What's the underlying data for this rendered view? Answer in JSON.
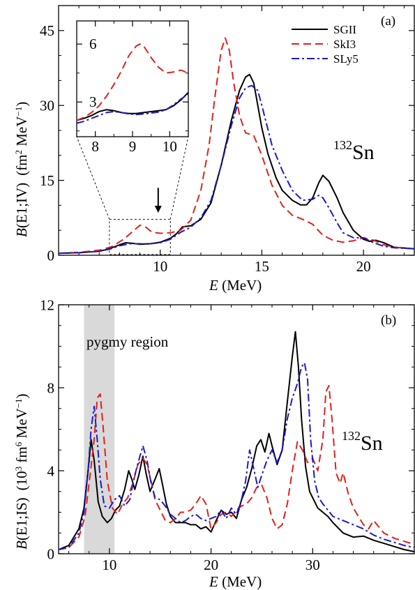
{
  "chart_data": [
    {
      "type": "line",
      "panel_label": "(a)",
      "nucleus_mass": "132",
      "nucleus_symbol": "Sn",
      "xlabel_italic": "E",
      "xlabel_unit": " (MeV)",
      "ylabel_italic_B": "B",
      "ylabel_E1": "(E1;IV)",
      "ylabel_unit_prefix": "(fm",
      "ylabel_unit_exp1": "2",
      "ylabel_unit_mid": " MeV",
      "ylabel_unit_exp2": "−1",
      "ylabel_unit_suffix": ")",
      "xlim": [
        5,
        22.5
      ],
      "ylim": [
        0,
        50
      ],
      "xticks": [
        10,
        15,
        20
      ],
      "yticks": [
        0,
        15,
        30,
        45
      ],
      "legend": {
        "placement": "top-right",
        "entries": [
          "SGII",
          "SkI3",
          "SLy5"
        ]
      },
      "series": [
        {
          "name": "SGII",
          "color": "#000000",
          "dash": "solid",
          "x": [
            5,
            6,
            7,
            7.5,
            8,
            8.3,
            8.6,
            9,
            9.5,
            10,
            10.5,
            10.8,
            11.1,
            11.5,
            12,
            12.5,
            13,
            13.5,
            13.9,
            14.2,
            14.4,
            14.6,
            14.8,
            15,
            15.3,
            15.7,
            16,
            16.5,
            16.9,
            17.2,
            17.5,
            17.8,
            18,
            18.3,
            18.7,
            19,
            19.5,
            20,
            20.3,
            20.6,
            21,
            21.5,
            22.5
          ],
          "y": [
            0.4,
            0.5,
            0.8,
            1.3,
            2.1,
            2.5,
            2.4,
            2.2,
            2.3,
            2.6,
            3.4,
            4.3,
            5.7,
            5.9,
            7.2,
            10.5,
            18,
            27,
            33,
            35.7,
            36.2,
            34.5,
            30,
            25.5,
            20.3,
            15.5,
            13,
            11,
            10.1,
            10.1,
            11.5,
            14.5,
            16,
            14.8,
            11.5,
            8.5,
            5,
            3.2,
            2.8,
            3,
            2.5,
            1.6,
            1.3
          ]
        },
        {
          "name": "SkI3",
          "color": "#e0201b",
          "dash": "dashed",
          "x": [
            5,
            6,
            7,
            7.6,
            8.2,
            8.6,
            9,
            9.3,
            9.6,
            10,
            10.5,
            11,
            11.5,
            12,
            12.4,
            12.7,
            13,
            13.2,
            13.4,
            13.6,
            13.9,
            14.2,
            14.6,
            15,
            15.5,
            16,
            16.5,
            17,
            17.5,
            18,
            18.5,
            19,
            19.5,
            20,
            20.5,
            21,
            21.5,
            22.5
          ],
          "y": [
            0.4,
            0.6,
            1,
            1.7,
            3.2,
            4.6,
            6,
            5.6,
            4.6,
            4.4,
            4.5,
            5,
            7,
            13,
            22,
            32,
            41,
            43.5,
            41,
            35,
            28,
            24.5,
            24,
            20,
            14,
            10,
            8,
            7.2,
            6.2,
            4,
            3,
            2.6,
            2.9,
            3.5,
            3,
            2.1,
            1.6,
            1.3
          ]
        },
        {
          "name": "SLy5",
          "color": "#1a1acc",
          "dash": "dashdot",
          "x": [
            5,
            6,
            7,
            7.5,
            8,
            8.5,
            9,
            9.5,
            10,
            10.5,
            11,
            11.5,
            12,
            12.5,
            13,
            13.5,
            13.9,
            14.2,
            14.5,
            14.8,
            15,
            15.5,
            16,
            16.5,
            17,
            17.5,
            17.8,
            18,
            18.3,
            18.7,
            19,
            19.5,
            20,
            20.5,
            21,
            21.5,
            22.5
          ],
          "y": [
            0.4,
            0.5,
            0.8,
            1.2,
            1.9,
            2.3,
            2.3,
            2.3,
            2.5,
            3.2,
            4.6,
            5.6,
            7.5,
            11,
            18,
            26,
            31.5,
            33.5,
            34,
            33,
            30,
            22,
            17,
            13,
            11,
            11.2,
            12,
            11.5,
            9.5,
            6.5,
            4.5,
            3.5,
            3.5,
            2.5,
            1.8,
            1.5,
            1.3
          ]
        }
      ],
      "inset": {
        "xlim": [
          7.5,
          10.5
        ],
        "ylim": [
          1.2,
          7.2
        ],
        "xticks": [
          8,
          9,
          10
        ],
        "yticks": [
          3,
          6
        ],
        "series": [
          {
            "name": "SGII",
            "x": [
              7.5,
              7.7,
              7.9,
              8.1,
              8.3,
              8.5,
              8.7,
              8.9,
              9.1,
              9.3,
              9.5,
              9.7,
              9.9,
              10.1,
              10.3,
              10.5
            ],
            "y": [
              2.05,
              2.15,
              2.3,
              2.5,
              2.6,
              2.55,
              2.45,
              2.4,
              2.4,
              2.45,
              2.5,
              2.55,
              2.6,
              2.8,
              3.1,
              3.5
            ]
          },
          {
            "name": "SkI3",
            "x": [
              7.5,
              7.7,
              7.9,
              8.1,
              8.3,
              8.5,
              8.7,
              8.9,
              9.1,
              9.2,
              9.3,
              9.5,
              9.7,
              9.9,
              10.1,
              10.3,
              10.5
            ],
            "y": [
              2.05,
              2.2,
              2.45,
              2.8,
              3.3,
              3.9,
              4.6,
              5.4,
              5.9,
              6,
              5.9,
              5.3,
              4.8,
              4.5,
              4.55,
              4.65,
              4.5
            ]
          },
          {
            "name": "SLy5",
            "x": [
              7.5,
              7.7,
              7.9,
              8.1,
              8.3,
              8.5,
              8.7,
              8.9,
              9.1,
              9.3,
              9.5,
              9.7,
              9.9,
              10.1,
              10.3,
              10.5
            ],
            "y": [
              1.9,
              2.0,
              2.15,
              2.3,
              2.45,
              2.5,
              2.45,
              2.38,
              2.35,
              2.38,
              2.42,
              2.48,
              2.6,
              2.85,
              3.15,
              3.4
            ]
          }
        ]
      },
      "zoom_box": {
        "x": [
          7.5,
          10.5
        ],
        "y": [
          0,
          7.2
        ]
      },
      "arrow": {
        "x": 9.9,
        "y_from": 13.5,
        "y_to": 8.5
      }
    },
    {
      "type": "line",
      "panel_label": "(b)",
      "nucleus_mass": "132",
      "nucleus_symbol": "Sn",
      "annotation": "pygmy region",
      "shaded_region": [
        7.5,
        10.5
      ],
      "xlabel_italic": "E",
      "xlabel_unit": " (MeV)",
      "ylabel_italic_B": "B",
      "ylabel_E1": "(E1;IS)",
      "ylabel_unit_prefix": "(10",
      "ylabel_unit_exp1": "3",
      "ylabel_unit_mid": " fm",
      "ylabel_unit_exp2": "6",
      "ylabel_unit_mid2": " MeV",
      "ylabel_unit_exp3": "−1",
      "ylabel_unit_suffix": ")",
      "xlim": [
        5,
        40
      ],
      "ylim": [
        0,
        12
      ],
      "xticks": [
        10,
        20,
        30
      ],
      "yticks": [
        0,
        4,
        8,
        12
      ],
      "series": [
        {
          "name": "SGII",
          "color": "#000000",
          "dash": "solid",
          "x": [
            5,
            6,
            7,
            7.5,
            7.9,
            8.2,
            8.5,
            8.9,
            9.3,
            9.8,
            10.2,
            10.6,
            11,
            11.5,
            11.9,
            12.2,
            12.5,
            12.9,
            13.3,
            13.6,
            14,
            14.5,
            14.9,
            15.2,
            15.6,
            16,
            16.5,
            17,
            17.5,
            18,
            18.5,
            19,
            19.5,
            20,
            20.5,
            21,
            21.5,
            22,
            22.5,
            23,
            23.5,
            24,
            24.5,
            24.9,
            25.3,
            25.7,
            26,
            26.5,
            27,
            27.5,
            28,
            28.3,
            28.6,
            28.9,
            29.3,
            29.7,
            30,
            30.5,
            31,
            31.5,
            32,
            33,
            34,
            35,
            36,
            37,
            38,
            39,
            40
          ],
          "y": [
            0.2,
            0.4,
            1.2,
            2.2,
            4,
            5.5,
            4.5,
            2.5,
            1.8,
            1.5,
            1.7,
            2.1,
            2.3,
            3.1,
            4,
            3.6,
            3.1,
            3.8,
            4.7,
            3.9,
            3,
            3.6,
            4.1,
            3.4,
            2.4,
            1.8,
            1.5,
            1.5,
            1.5,
            1.4,
            1.4,
            1.2,
            1.3,
            1.05,
            1.6,
            2.1,
            1.9,
            2,
            1.7,
            2.6,
            3.2,
            4.1,
            5.2,
            5.5,
            4.9,
            5.8,
            5.2,
            4.3,
            5,
            7.3,
            9.5,
            10.7,
            9,
            6.5,
            4.2,
            3,
            2.7,
            2.2,
            2,
            1.8,
            1.5,
            1,
            0.8,
            0.85,
            0.65,
            0.5,
            0.35,
            0.2,
            0.1
          ]
        },
        {
          "name": "SkI3",
          "color": "#e0201b",
          "dash": "dashed",
          "x": [
            5,
            6,
            7,
            7.6,
            8.1,
            8.5,
            8.8,
            9.1,
            9.4,
            9.8,
            10.3,
            10.8,
            11.3,
            11.8,
            12.3,
            12.8,
            13.3,
            13.7,
            14.1,
            14.5,
            15,
            15.5,
            16,
            16.5,
            17,
            17.5,
            18,
            18.5,
            19,
            19.5,
            20,
            20.5,
            21,
            21.5,
            22,
            22.5,
            23,
            23.5,
            24,
            24.5,
            25,
            25.5,
            26,
            26.5,
            27,
            27.5,
            28,
            28.5,
            29,
            29.5,
            30,
            30.5,
            31,
            31.3,
            31.6,
            31.9,
            32.3,
            32.7,
            33,
            33.5,
            34,
            35,
            35.5,
            36,
            37,
            38,
            40
          ],
          "y": [
            0.2,
            0.3,
            0.8,
            1.8,
            3.8,
            5.5,
            7.5,
            7.7,
            6,
            3.5,
            2.2,
            1.9,
            2.4,
            2.7,
            3.4,
            4.3,
            4.6,
            4.3,
            3.5,
            2.6,
            2.1,
            1.6,
            1.5,
            1.7,
            2,
            2,
            2.1,
            2.4,
            2.8,
            2.4,
            1.2,
            1.5,
            1.9,
            2,
            1.8,
            2.1,
            2.3,
            2.4,
            2.7,
            3.2,
            3.3,
            2.7,
            1.7,
            1.2,
            1.4,
            2.4,
            4,
            5.4,
            5,
            4.4,
            4.6,
            4,
            5.5,
            7.8,
            8.1,
            6.5,
            3.9,
            3.4,
            3.9,
            2.9,
            2.2,
            1.4,
            1.2,
            1.6,
            1,
            0.75,
            0.45
          ]
        },
        {
          "name": "SLy5",
          "color": "#1a1acc",
          "dash": "dashdot",
          "x": [
            5,
            6,
            7,
            7.5,
            7.9,
            8.2,
            8.5,
            8.8,
            9.1,
            9.5,
            10,
            10.5,
            11,
            11.5,
            12,
            12.5,
            13,
            13.3,
            13.7,
            14.1,
            14.5,
            15,
            15.5,
            16,
            16.5,
            17,
            17.5,
            18,
            18.5,
            19,
            19.5,
            20,
            20.5,
            21,
            21.5,
            22,
            22.5,
            23,
            23.4,
            23.8,
            24.2,
            24.6,
            25,
            25.5,
            26,
            26.5,
            27,
            27.5,
            28,
            28.5,
            28.9,
            29.2,
            29.5,
            29.8,
            30.2,
            30.6,
            31,
            31.5,
            32,
            33,
            34,
            35,
            36,
            37,
            38,
            39,
            40
          ],
          "y": [
            0.2,
            0.3,
            1,
            2,
            4,
            6,
            7.1,
            5.5,
            3.6,
            2.3,
            2.2,
            2.6,
            2.8,
            2.3,
            2.6,
            3.8,
            4.7,
            5.2,
            4.5,
            3.4,
            2.7,
            2.6,
            2.3,
            1.9,
            1.7,
            1.5,
            1.6,
            1.8,
            1.9,
            1.7,
            1.6,
            1.7,
            1.8,
            2.1,
            1.7,
            2.2,
            1.9,
            2.6,
            3.5,
            5,
            4.1,
            3.2,
            3.8,
            4.5,
            5,
            4.4,
            5,
            6.5,
            7.5,
            8.2,
            9,
            9.2,
            8.4,
            5.5,
            3.5,
            2.7,
            2.4,
            2.1,
            1.8,
            1.6,
            1.4,
            1.2,
            0.9,
            0.7,
            0.55,
            0.4,
            0.3
          ]
        }
      ]
    }
  ]
}
